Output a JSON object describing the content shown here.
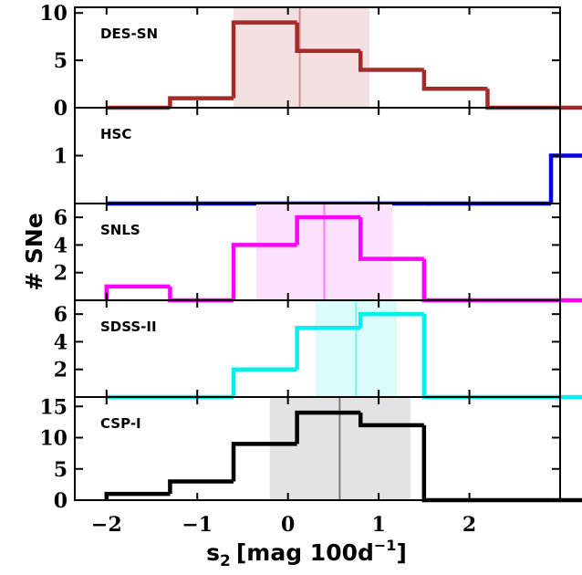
{
  "chart_data": {
    "type": "histogram-stack",
    "ylabel": "# SNe",
    "xlabel": {
      "main": "s",
      "sub": "2",
      "bracket_open": "[mag 100d",
      "sup": "−1",
      "bracket_close": "]"
    },
    "xlim": [
      -2.35,
      3.0
    ],
    "x_ticks": [
      -2,
      -1,
      0,
      1,
      2
    ],
    "x_tick_labels": [
      "−2",
      "−1",
      "0",
      "1",
      "2"
    ],
    "bin_edges": [
      -2.0,
      -1.3,
      -0.6,
      0.1,
      0.8,
      1.5,
      2.2,
      2.9,
      3.6
    ],
    "panels": [
      {
        "label": "DES-SN",
        "color": "#a52a2a",
        "counts": [
          0,
          1,
          9,
          6,
          4,
          2,
          0,
          0
        ],
        "ylim": [
          0,
          10.6
        ],
        "y_ticks": [
          0,
          5,
          10
        ],
        "y_tick_labels": [
          "0",
          "5",
          "10"
        ],
        "band": [
          -0.6,
          0.9
        ],
        "band_color": "#f3e1e1",
        "median": 0.13
      },
      {
        "label": "HSC",
        "color": "#0000ee",
        "counts": [
          0,
          0,
          0,
          0,
          0,
          0,
          0,
          1
        ],
        "ylim": [
          0,
          2.0
        ],
        "y_ticks": [
          1
        ],
        "y_tick_labels": [
          "1"
        ],
        "band": null,
        "band_color": null,
        "median": null
      },
      {
        "label": "SNLS",
        "color": "#ff00ff",
        "counts": [
          1,
          0,
          4,
          6,
          3,
          0,
          0,
          0
        ],
        "ylim": [
          0,
          7.0
        ],
        "y_ticks": [
          2,
          4,
          6
        ],
        "y_tick_labels": [
          "2",
          "4",
          "6"
        ],
        "band": [
          -0.35,
          1.15
        ],
        "band_color": "#fce0fc",
        "median": 0.4
      },
      {
        "label": "SDSS-II",
        "color": "#00f0f0",
        "counts": [
          0,
          0,
          2,
          5,
          6,
          0,
          0,
          0
        ],
        "ylim": [
          0,
          7.0
        ],
        "y_ticks": [
          2,
          4,
          6
        ],
        "y_tick_labels": [
          "2",
          "4",
          "6"
        ],
        "band": [
          0.3,
          1.2
        ],
        "band_color": "#dcfbfb",
        "median": 0.75
      },
      {
        "label": "CSP-I",
        "color": "#000000",
        "counts": [
          1,
          3,
          9,
          14,
          12,
          0,
          0,
          0
        ],
        "ylim": [
          0,
          16.5
        ],
        "y_ticks": [
          0,
          5,
          10,
          15
        ],
        "y_tick_labels": [
          "0",
          "5",
          "10",
          "15"
        ],
        "band": [
          -0.2,
          1.35
        ],
        "band_color": "#e3e3e3",
        "median": 0.57
      }
    ]
  }
}
